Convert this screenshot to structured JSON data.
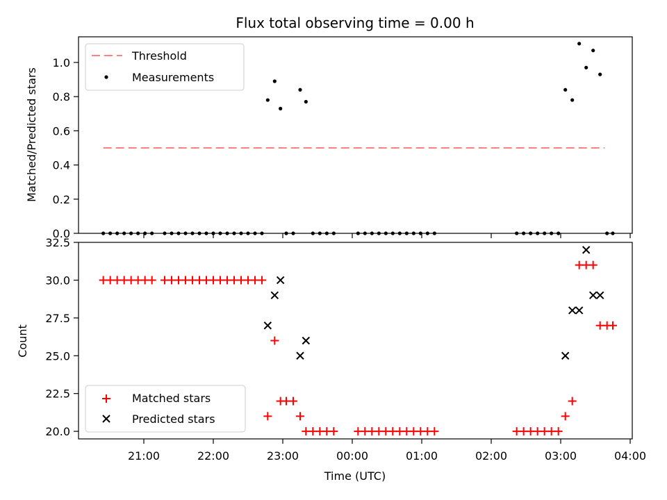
{
  "title": "Flux total observing time = 0.00 h",
  "chart_data": [
    {
      "type": "scatter",
      "ylabel": "Matched/Predicted stars",
      "xlabel": "",
      "ylim": [
        0.0,
        1.15
      ],
      "yticks": [
        "0.0",
        "0.2",
        "0.4",
        "0.6",
        "0.8",
        "1.0"
      ],
      "legend_position": "top-left",
      "threshold": {
        "name": "Threshold",
        "value": 0.5,
        "x_range": [
          "20:25",
          "03:38"
        ],
        "color": "#ff8080"
      },
      "series": [
        {
          "name": "Measurements",
          "color": "#000000",
          "points": [
            [
              "20:25",
              0
            ],
            [
              "20:31",
              0
            ],
            [
              "20:37",
              0
            ],
            [
              "20:43",
              0
            ],
            [
              "20:49",
              0
            ],
            [
              "20:55",
              0
            ],
            [
              "21:01",
              0
            ],
            [
              "21:07",
              0
            ],
            [
              "21:18",
              0
            ],
            [
              "21:24",
              0
            ],
            [
              "21:30",
              0
            ],
            [
              "21:36",
              0
            ],
            [
              "21:42",
              0
            ],
            [
              "21:48",
              0
            ],
            [
              "21:54",
              0
            ],
            [
              "22:00",
              0
            ],
            [
              "22:06",
              0
            ],
            [
              "22:12",
              0
            ],
            [
              "22:18",
              0
            ],
            [
              "22:24",
              0
            ],
            [
              "22:30",
              0
            ],
            [
              "22:36",
              0
            ],
            [
              "22:42",
              0
            ],
            [
              "22:47",
              0.78
            ],
            [
              "22:53",
              0.89
            ],
            [
              "22:58",
              0.73
            ],
            [
              "23:03",
              0
            ],
            [
              "23:09",
              0
            ],
            [
              "23:15",
              0.84
            ],
            [
              "23:20",
              0.77
            ],
            [
              "23:26",
              0
            ],
            [
              "23:32",
              0
            ],
            [
              "23:38",
              0
            ],
            [
              "23:44",
              0
            ],
            [
              "00:05",
              0
            ],
            [
              "00:11",
              0
            ],
            [
              "00:17",
              0
            ],
            [
              "00:23",
              0
            ],
            [
              "00:29",
              0
            ],
            [
              "00:35",
              0
            ],
            [
              "00:41",
              0
            ],
            [
              "00:47",
              0
            ],
            [
              "00:53",
              0
            ],
            [
              "00:59",
              0
            ],
            [
              "01:05",
              0
            ],
            [
              "01:11",
              0
            ],
            [
              "02:22",
              0
            ],
            [
              "02:28",
              0
            ],
            [
              "02:34",
              0
            ],
            [
              "02:40",
              0
            ],
            [
              "02:46",
              0
            ],
            [
              "02:52",
              0
            ],
            [
              "02:58",
              0
            ],
            [
              "03:04",
              0.84
            ],
            [
              "03:10",
              0.78
            ],
            [
              "03:16",
              1.11
            ],
            [
              "03:22",
              0.97
            ],
            [
              "03:28",
              1.07
            ],
            [
              "03:34",
              0.93
            ],
            [
              "03:40",
              0
            ],
            [
              "03:45",
              0
            ]
          ]
        }
      ]
    },
    {
      "type": "scatter",
      "ylabel": "Count",
      "xlabel": "Time (UTC)",
      "ylim": [
        19.5,
        32.5
      ],
      "yticks": [
        "20.0",
        "22.5",
        "25.0",
        "27.5",
        "30.0",
        "32.5"
      ],
      "xticks": [
        "21:00",
        "22:00",
        "23:00",
        "00:00",
        "01:00",
        "02:00",
        "03:00",
        "04:00"
      ],
      "legend_position": "bottom-left",
      "series": [
        {
          "name": "Matched stars",
          "marker": "+",
          "color": "#ff0000",
          "points": [
            [
              "20:25",
              30
            ],
            [
              "20:31",
              30
            ],
            [
              "20:37",
              30
            ],
            [
              "20:43",
              30
            ],
            [
              "20:49",
              30
            ],
            [
              "20:55",
              30
            ],
            [
              "21:01",
              30
            ],
            [
              "21:07",
              30
            ],
            [
              "21:18",
              30
            ],
            [
              "21:24",
              30
            ],
            [
              "21:30",
              30
            ],
            [
              "21:36",
              30
            ],
            [
              "21:42",
              30
            ],
            [
              "21:48",
              30
            ],
            [
              "21:54",
              30
            ],
            [
              "22:00",
              30
            ],
            [
              "22:06",
              30
            ],
            [
              "22:12",
              30
            ],
            [
              "22:18",
              30
            ],
            [
              "22:24",
              30
            ],
            [
              "22:30",
              30
            ],
            [
              "22:36",
              30
            ],
            [
              "22:42",
              30
            ],
            [
              "22:47",
              21
            ],
            [
              "22:53",
              26
            ],
            [
              "22:58",
              22
            ],
            [
              "23:03",
              22
            ],
            [
              "23:09",
              22
            ],
            [
              "23:15",
              21
            ],
            [
              "23:20",
              20
            ],
            [
              "23:26",
              20
            ],
            [
              "23:32",
              20
            ],
            [
              "23:38",
              20
            ],
            [
              "23:44",
              20
            ],
            [
              "00:05",
              20
            ],
            [
              "00:11",
              20
            ],
            [
              "00:17",
              20
            ],
            [
              "00:23",
              20
            ],
            [
              "00:29",
              20
            ],
            [
              "00:35",
              20
            ],
            [
              "00:41",
              20
            ],
            [
              "00:47",
              20
            ],
            [
              "00:53",
              20
            ],
            [
              "00:59",
              20
            ],
            [
              "01:05",
              20
            ],
            [
              "01:11",
              20
            ],
            [
              "02:22",
              20
            ],
            [
              "02:28",
              20
            ],
            [
              "02:34",
              20
            ],
            [
              "02:40",
              20
            ],
            [
              "02:46",
              20
            ],
            [
              "02:52",
              20
            ],
            [
              "02:58",
              20
            ],
            [
              "03:04",
              21
            ],
            [
              "03:10",
              22
            ],
            [
              "03:16",
              31
            ],
            [
              "03:22",
              31
            ],
            [
              "03:28",
              31
            ],
            [
              "03:34",
              27
            ],
            [
              "03:40",
              27
            ],
            [
              "03:45",
              27
            ]
          ]
        },
        {
          "name": "Predicted stars",
          "marker": "x",
          "color": "#000000",
          "points": [
            [
              "22:47",
              27
            ],
            [
              "22:53",
              29
            ],
            [
              "22:58",
              30
            ],
            [
              "23:15",
              25
            ],
            [
              "23:20",
              26
            ],
            [
              "03:04",
              25
            ],
            [
              "03:10",
              28
            ],
            [
              "03:16",
              28
            ],
            [
              "03:22",
              32
            ],
            [
              "03:28",
              29
            ],
            [
              "03:34",
              29
            ]
          ]
        }
      ]
    }
  ]
}
